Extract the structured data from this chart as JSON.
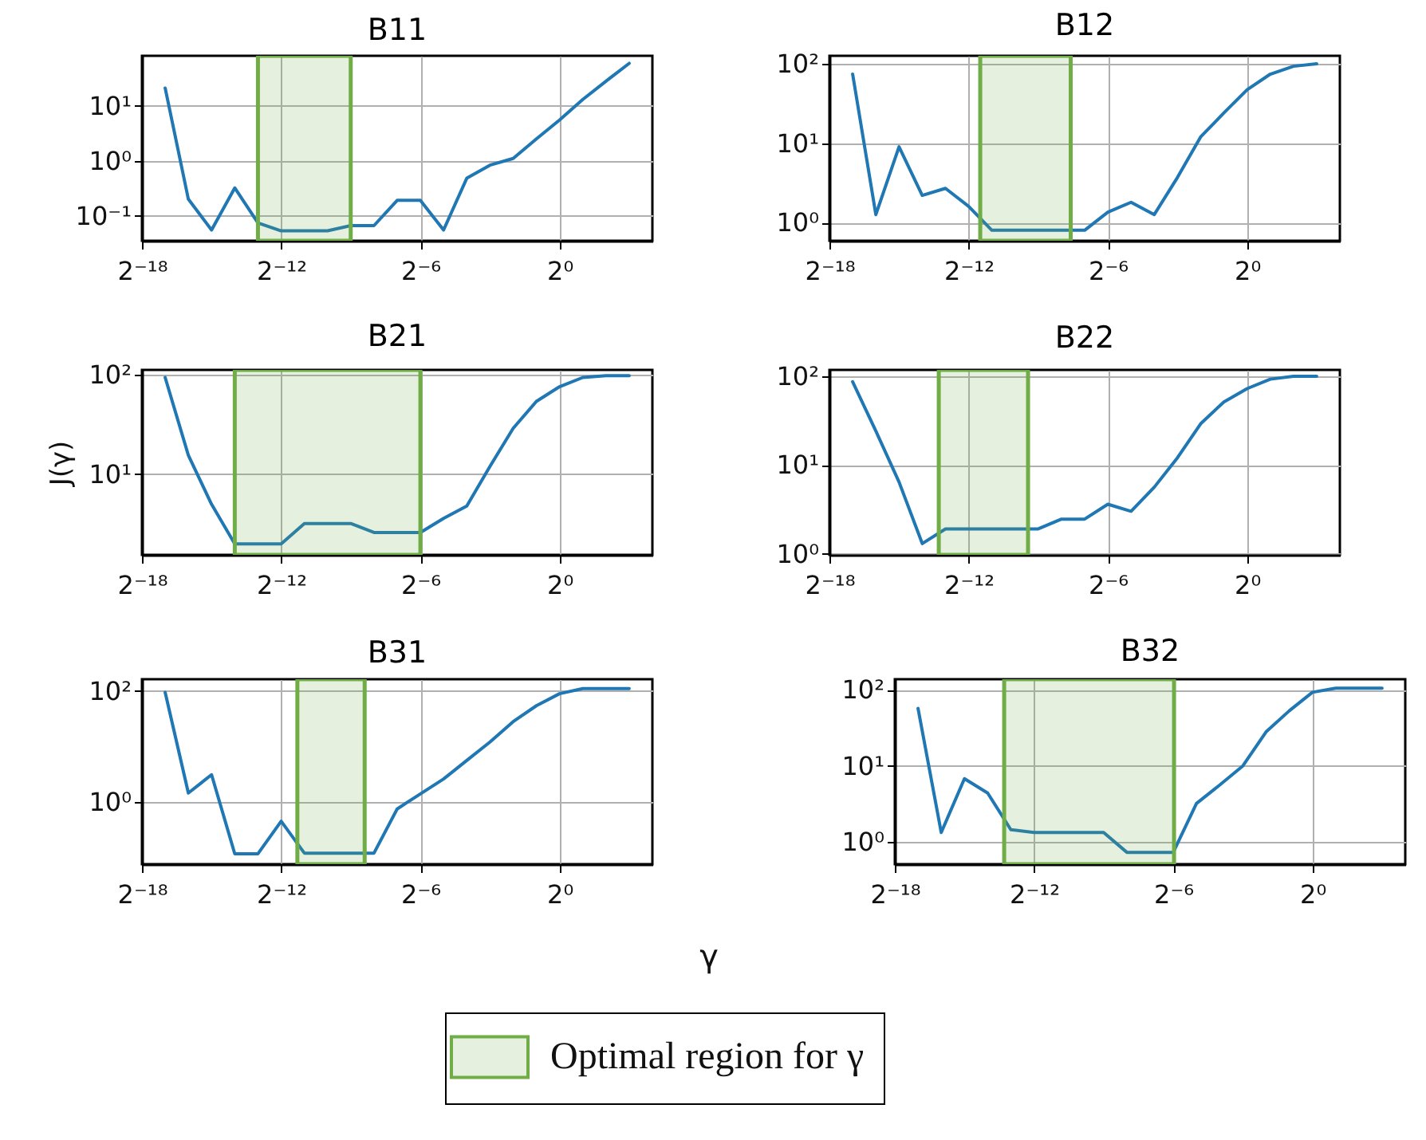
{
  "chart_data": [
    {
      "type": "line",
      "title": "B11",
      "x": [
        7.62939453125e-06,
        1.52587890625e-05,
        3.0517578125e-05,
        6.103515625e-05,
        0.0001220703125,
        0.000244140625,
        0.00048828125,
        0.0009765625,
        0.001953125,
        0.00390625,
        0.0078125,
        0.015625,
        0.03125,
        0.0625,
        0.125,
        0.25,
        0.5,
        1,
        2,
        4,
        8
      ],
      "series": [
        {
          "color": "#1f77b4",
          "values": [
            21,
            0.2,
            0.055,
            0.32,
            0.074,
            0.053,
            0.053,
            0.053,
            0.066,
            0.066,
            0.19,
            0.19,
            0.055,
            0.48,
            0.83,
            1.1,
            2.5,
            5.5,
            13,
            28,
            59
          ]
        }
      ],
      "bands": [
        {
          "axis": "x",
          "from": 0.000122,
          "to": 0.00195,
          "label": "Optimal region for γ",
          "color": "#70ad47"
        }
      ],
      "log": "xy",
      "grid": true,
      "legend": "bottom",
      "xlim": [
        3.814697265625e-06,
        16
      ],
      "ylim": [
        0.035,
        81
      ],
      "xticks": [
        {
          "value": 3.814697265625e-06,
          "label": "2⁻¹⁸"
        },
        {
          "value": 0.000244140625,
          "label": "2⁻¹²"
        },
        {
          "value": 0.015625,
          "label": "2⁻⁶"
        },
        {
          "value": 1,
          "label": "2⁰"
        }
      ],
      "yticks": [
        {
          "value": 0.1,
          "label": "10⁻¹"
        },
        {
          "value": 1,
          "label": "10⁰"
        },
        {
          "value": 10,
          "label": "10¹"
        }
      ]
    },
    {
      "type": "line",
      "title": "B12",
      "x": [
        7.62939453125e-06,
        1.52587890625e-05,
        3.0517578125e-05,
        6.103515625e-05,
        0.0001220703125,
        0.000244140625,
        0.00048828125,
        0.0009765625,
        0.001953125,
        0.00390625,
        0.0078125,
        0.015625,
        0.03125,
        0.0625,
        0.125,
        0.25,
        0.5,
        1,
        2,
        4,
        8
      ],
      "series": [
        {
          "color": "#1f77b4",
          "values": [
            74,
            1.26,
            9,
            2.2,
            2.7,
            1.6,
            0.8,
            0.8,
            0.8,
            0.8,
            0.8,
            1.35,
            1.8,
            1.26,
            3.7,
            12,
            24,
            47,
            74,
            93,
            100
          ]
        }
      ],
      "bands": [
        {
          "axis": "x",
          "from": 0.000345,
          "to": 0.00515,
          "color": "#70ad47"
        }
      ],
      "log": "xy",
      "grid": true,
      "xlim": [
        3.814697265625e-06,
        16
      ],
      "ylim": [
        0.59,
        126
      ],
      "xticks": [
        {
          "value": 3.814697265625e-06,
          "label": "2⁻¹⁸"
        },
        {
          "value": 0.000244140625,
          "label": "2⁻¹²"
        },
        {
          "value": 0.015625,
          "label": "2⁻⁶"
        },
        {
          "value": 1,
          "label": "2⁰"
        }
      ],
      "yticks": [
        {
          "value": 1,
          "label": "10⁰"
        },
        {
          "value": 10,
          "label": "10¹"
        },
        {
          "value": 100,
          "label": "10²"
        }
      ]
    },
    {
      "type": "line",
      "title": "B21",
      "ylabel": "J(γ)",
      "x": [
        7.62939453125e-06,
        1.52587890625e-05,
        3.0517578125e-05,
        6.103515625e-05,
        0.0001220703125,
        0.000244140625,
        0.00048828125,
        0.0009765625,
        0.001953125,
        0.00390625,
        0.0078125,
        0.015625,
        0.03125,
        0.0625,
        0.125,
        0.25,
        0.5,
        1,
        2,
        4,
        8
      ],
      "series": [
        {
          "color": "#1f77b4",
          "values": [
            94,
            15.5,
            5,
            2,
            2,
            2,
            3.2,
            3.2,
            3.2,
            2.6,
            2.6,
            2.6,
            3.6,
            4.8,
            12,
            29,
            54,
            76,
            94,
            98,
            98
          ]
        }
      ],
      "bands": [
        {
          "axis": "x",
          "from": 6.103515625e-05,
          "to": 0.015625,
          "color": "#70ad47"
        }
      ],
      "log": "xy",
      "grid": true,
      "xlim": [
        3.814697265625e-06,
        16
      ],
      "ylim": [
        1.55,
        112
      ],
      "xticks": [
        {
          "value": 3.814697265625e-06,
          "label": "2⁻¹⁸"
        },
        {
          "value": 0.000244140625,
          "label": "2⁻¹²"
        },
        {
          "value": 0.015625,
          "label": "2⁻⁶"
        },
        {
          "value": 1,
          "label": "2⁰"
        }
      ],
      "yticks": [
        {
          "value": 10,
          "label": "10¹"
        },
        {
          "value": 100,
          "label": "10²"
        }
      ]
    },
    {
      "type": "line",
      "title": "B22",
      "x": [
        7.62939453125e-06,
        1.52587890625e-05,
        3.0517578125e-05,
        6.103515625e-05,
        0.0001220703125,
        0.000244140625,
        0.00048828125,
        0.0009765625,
        0.001953125,
        0.00390625,
        0.0078125,
        0.015625,
        0.03125,
        0.0625,
        0.125,
        0.25,
        0.5,
        1,
        2,
        4,
        8
      ],
      "series": [
        {
          "color": "#1f77b4",
          "values": [
            86,
            24,
            6.4,
            1.3,
            1.9,
            1.9,
            1.9,
            1.9,
            1.9,
            2.45,
            2.45,
            3.6,
            3,
            5.6,
            12,
            29,
            51,
            72,
            92,
            99,
            99
          ]
        }
      ],
      "bands": [
        {
          "axis": "x",
          "from": 0.0001,
          "to": 0.00144,
          "color": "#70ad47"
        }
      ],
      "log": "xy",
      "grid": true,
      "xlim": [
        3.814697265625e-06,
        16
      ],
      "ylim": [
        0.97,
        117
      ],
      "xticks": [
        {
          "value": 3.814697265625e-06,
          "label": "2⁻¹⁸"
        },
        {
          "value": 0.000244140625,
          "label": "2⁻¹²"
        },
        {
          "value": 0.015625,
          "label": "2⁻⁶"
        },
        {
          "value": 1,
          "label": "2⁰"
        }
      ],
      "yticks": [
        {
          "value": 1,
          "label": "10⁰"
        },
        {
          "value": 10,
          "label": "10¹"
        },
        {
          "value": 100,
          "label": "10²"
        }
      ]
    },
    {
      "type": "line",
      "title": "B31",
      "xlabel": "γ",
      "x": [
        7.62939453125e-06,
        1.52587890625e-05,
        3.0517578125e-05,
        6.103515625e-05,
        0.0001220703125,
        0.000244140625,
        0.00048828125,
        0.0009765625,
        0.001953125,
        0.00390625,
        0.0078125,
        0.015625,
        0.03125,
        0.0625,
        0.125,
        0.25,
        0.5,
        1,
        2,
        4,
        8
      ],
      "series": [
        {
          "color": "#1f77b4",
          "values": [
            94,
            1.45,
            3.1,
            0.117,
            0.117,
            0.45,
            0.12,
            0.12,
            0.12,
            0.12,
            0.75,
            1.4,
            2.6,
            5.6,
            12,
            28,
            54,
            89,
            110,
            110,
            110
          ]
        }
      ],
      "bands": [
        {
          "axis": "x",
          "from": 0.000396,
          "to": 0.00296,
          "color": "#70ad47"
        }
      ],
      "log": "xy",
      "grid": true,
      "xlim": [
        3.814697265625e-06,
        16
      ],
      "ylim": [
        0.076,
        162
      ],
      "xticks": [
        {
          "value": 3.814697265625e-06,
          "label": "2⁻¹⁸"
        },
        {
          "value": 0.000244140625,
          "label": "2⁻¹²"
        },
        {
          "value": 0.015625,
          "label": "2⁻⁶"
        },
        {
          "value": 1,
          "label": "2⁰"
        }
      ],
      "yticks": [
        {
          "value": 1,
          "label": "10⁰"
        },
        {
          "value": 100,
          "label": "10²"
        }
      ]
    },
    {
      "type": "line",
      "title": "B32",
      "x": [
        7.62939453125e-06,
        1.52587890625e-05,
        3.0517578125e-05,
        6.103515625e-05,
        0.0001220703125,
        0.000244140625,
        0.00048828125,
        0.0009765625,
        0.001953125,
        0.00390625,
        0.0078125,
        0.015625,
        0.03125,
        0.0625,
        0.125,
        0.25,
        0.5,
        1,
        2,
        4,
        8
      ],
      "series": [
        {
          "color": "#1f77b4",
          "values": [
            57,
            1.33,
            6.8,
            4.4,
            1.45,
            1.33,
            1.33,
            1.33,
            1.33,
            0.73,
            0.73,
            0.73,
            3.2,
            5.6,
            10,
            28,
            53,
            93,
            105,
            105,
            105
          ]
        }
      ],
      "bands": [
        {
          "axis": "x",
          "from": 0.0001,
          "to": 0.016,
          "color": "#70ad47"
        }
      ],
      "log": "xy",
      "grid": true,
      "xlim": [
        3.814697265625e-06,
        16
      ],
      "ylim": [
        0.51,
        138
      ],
      "xticks": [
        {
          "value": 3.814697265625e-06,
          "label": "2⁻¹⁸"
        },
        {
          "value": 0.000244140625,
          "label": "2⁻¹²"
        },
        {
          "value": 0.015625,
          "label": "2⁻⁶"
        },
        {
          "value": 1,
          "label": "2⁰"
        }
      ],
      "yticks": [
        {
          "value": 1,
          "label": "10⁰"
        },
        {
          "value": 100,
          "label": "10²"
        },
        {
          "value": 10,
          "label": "10¹"
        }
      ]
    }
  ]
}
